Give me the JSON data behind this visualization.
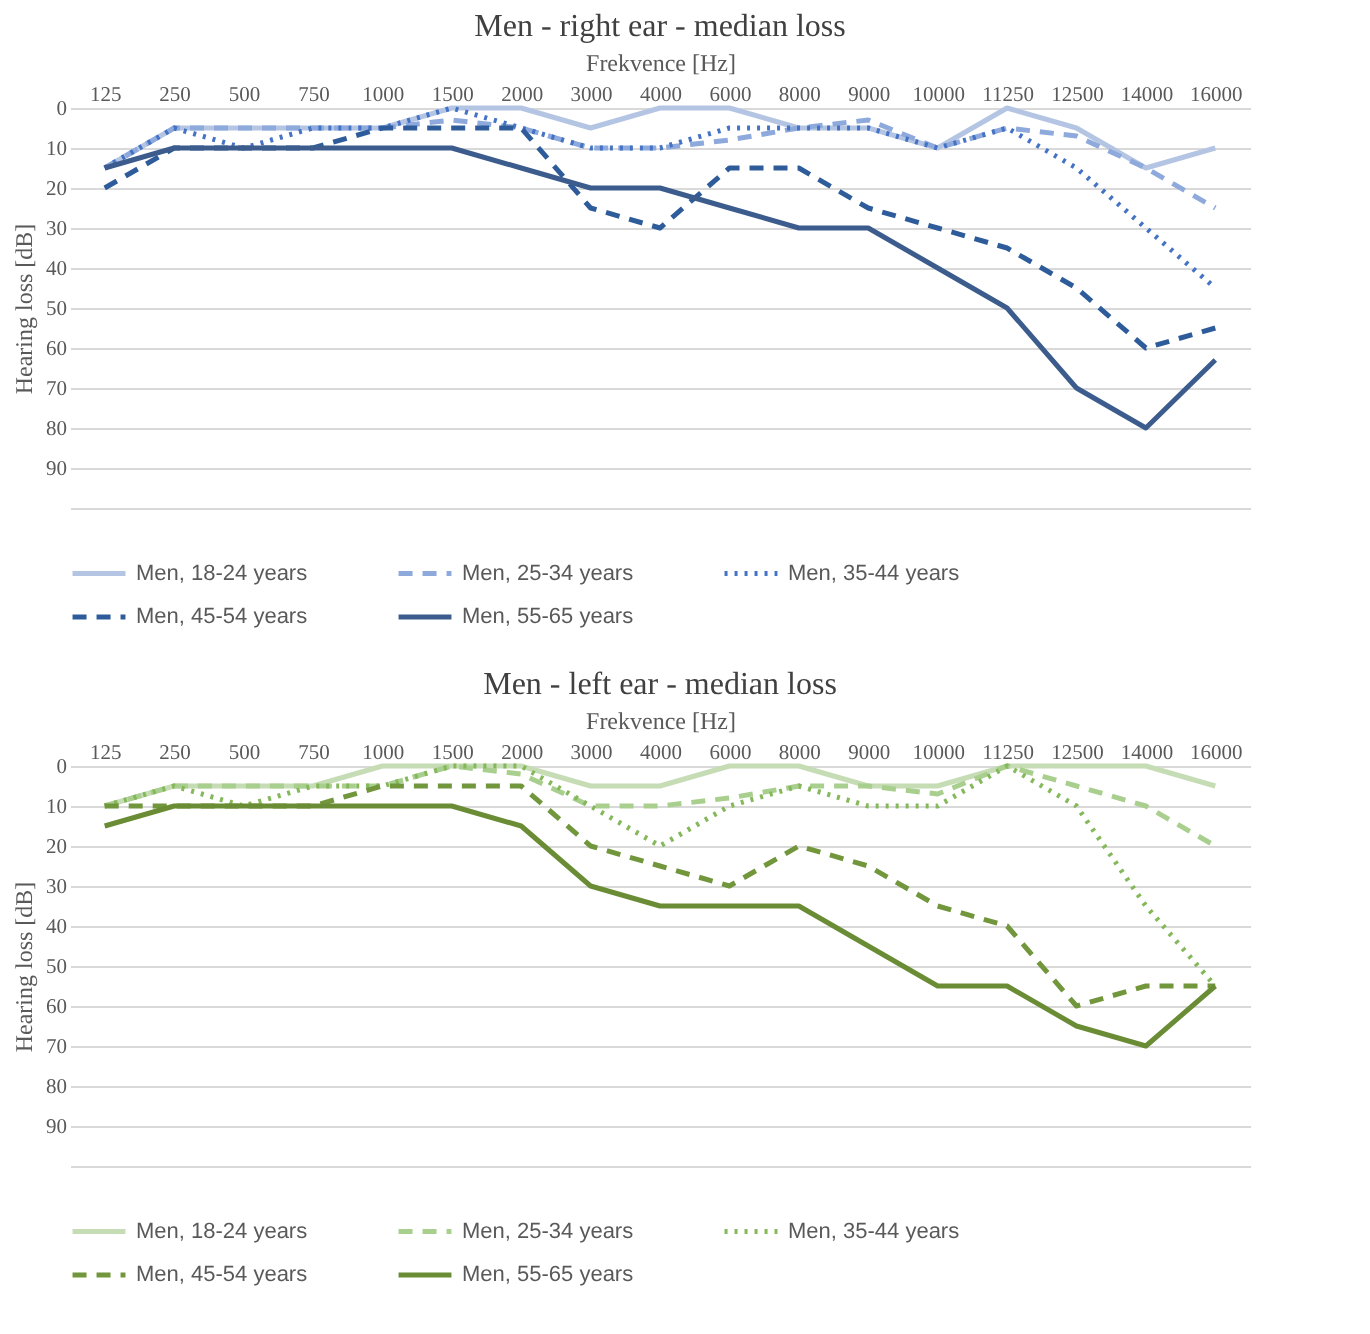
{
  "chart_data": [
    {
      "type": "line",
      "title": "Men - right ear - median loss",
      "xlabel": "Frekvence [Hz]",
      "ylabel": "Hearing loss [dB]",
      "categories": [
        "125",
        "250",
        "500",
        "750",
        "1000",
        "1500",
        "2000",
        "3000",
        "4000",
        "6000",
        "8000",
        "9000",
        "10000",
        "11250",
        "12500",
        "14000",
        "16000"
      ],
      "ylim": [
        100,
        0
      ],
      "yticks": [
        0,
        10,
        20,
        30,
        40,
        50,
        60,
        70,
        80,
        90,
        {
          "value": 100,
          "label": null
        }
      ],
      "grid": "y",
      "legend": "bottom",
      "series": [
        {
          "name": "Men, 18-24 years",
          "color": "#b4c5e4",
          "line_style": "solid",
          "values": [
            15,
            5,
            5,
            5,
            5,
            0,
            0,
            5,
            0,
            0,
            5,
            5,
            10,
            0,
            5,
            15,
            10
          ]
        },
        {
          "name": "Men, 25-34 years",
          "color": "#8ea9db",
          "line_style": "dashed",
          "values": [
            15,
            5,
            5,
            5,
            5,
            3,
            5,
            10,
            10,
            8,
            5,
            3,
            10,
            5,
            7,
            15,
            25
          ]
        },
        {
          "name": "Men, 35-44 years",
          "color": "#4472c4",
          "line_style": "dotted",
          "values": [
            15,
            5,
            10,
            5,
            5,
            0,
            5,
            10,
            10,
            5,
            5,
            5,
            10,
            5,
            15,
            30,
            45
          ]
        },
        {
          "name": "Men, 45-54 years",
          "color": "#2e5c9a",
          "line_style": "dashed",
          "values": [
            20,
            10,
            10,
            10,
            5,
            5,
            5,
            25,
            30,
            15,
            15,
            25,
            30,
            35,
            45,
            60,
            55
          ]
        },
        {
          "name": "Men, 55-65 years",
          "color": "#3b5c8c",
          "line_style": "solid",
          "values": [
            15,
            10,
            10,
            10,
            10,
            10,
            15,
            20,
            20,
            25,
            30,
            30,
            40,
            50,
            70,
            80,
            63
          ]
        }
      ]
    },
    {
      "type": "line",
      "title": "Men - left ear - median loss",
      "xlabel": "Frekvence [Hz]",
      "ylabel": "Hearing loss [dB]",
      "categories": [
        "125",
        "250",
        "500",
        "750",
        "1000",
        "1500",
        "2000",
        "3000",
        "4000",
        "6000",
        "8000",
        "9000",
        "10000",
        "11250",
        "12500",
        "14000",
        "16000"
      ],
      "ylim": [
        100,
        0
      ],
      "yticks": [
        0,
        10,
        20,
        30,
        40,
        50,
        60,
        70,
        80,
        90,
        {
          "value": 100,
          "label": null
        }
      ],
      "grid": "y",
      "legend": "bottom",
      "series": [
        {
          "name": "Men, 18-24 years",
          "color": "#c5dcb5",
          "line_style": "solid",
          "values": [
            10,
            5,
            5,
            5,
            0,
            0,
            0,
            5,
            5,
            0,
            0,
            5,
            5,
            0,
            0,
            0,
            5
          ]
        },
        {
          "name": "Men, 25-34 years",
          "color": "#a9cf8e",
          "line_style": "dashed",
          "values": [
            10,
            5,
            5,
            5,
            5,
            0,
            2,
            10,
            10,
            8,
            5,
            5,
            7,
            0,
            5,
            10,
            20
          ]
        },
        {
          "name": "Men, 35-44 years",
          "color": "#84b85a",
          "line_style": "dotted",
          "values": [
            10,
            5,
            10,
            5,
            5,
            0,
            0,
            10,
            20,
            10,
            5,
            10,
            10,
            0,
            10,
            35,
            55
          ]
        },
        {
          "name": "Men, 45-54 years",
          "color": "#71963c",
          "line_style": "dashed",
          "values": [
            10,
            10,
            10,
            10,
            5,
            5,
            5,
            20,
            25,
            30,
            20,
            25,
            35,
            40,
            60,
            55,
            55
          ]
        },
        {
          "name": "Men, 55-65 years",
          "color": "#6a8c35",
          "line_style": "solid",
          "values": [
            15,
            10,
            10,
            10,
            10,
            10,
            15,
            30,
            35,
            35,
            35,
            45,
            55,
            55,
            65,
            70,
            55
          ]
        }
      ]
    }
  ]
}
